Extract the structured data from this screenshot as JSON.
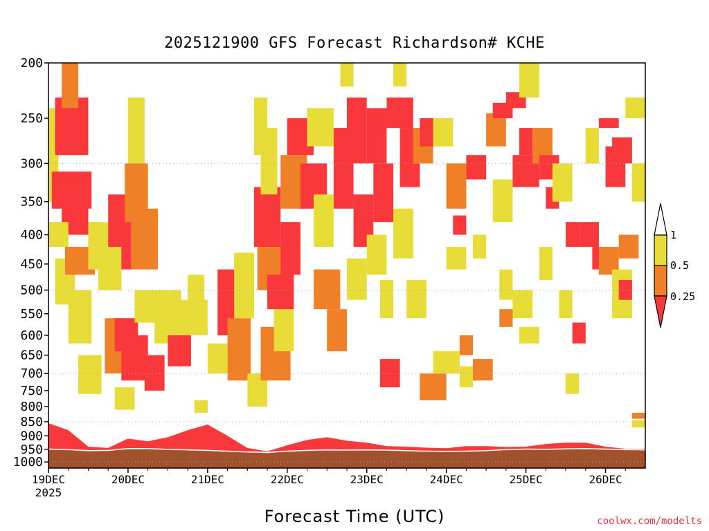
{
  "chart_data": {
    "type": "heatmap",
    "title": "2025121900 GFS Forecast Richardson# KCHE",
    "xlabel": "Forecast Time (UTC)",
    "credit": "coolwx.com/modelts",
    "x_ticks": [
      "19DEC",
      "20DEC",
      "21DEC",
      "22DEC",
      "23DEC",
      "24DEC",
      "25DEC",
      "26DEC"
    ],
    "x_start_label": "2025",
    "x_range_hours": [
      0,
      180
    ],
    "y_ticks": [
      200,
      250,
      300,
      350,
      400,
      450,
      500,
      550,
      600,
      650,
      700,
      750,
      800,
      850,
      900,
      950,
      1000
    ],
    "ylim": [
      1025,
      200
    ],
    "y_scale": "log-pressure",
    "gridlines": [
      300,
      500,
      700,
      850,
      1000
    ],
    "legend": {
      "position": "right",
      "levels": [
        "1",
        "0.5",
        "0.25"
      ],
      "colors": {
        "gt1": "#ffffff",
        "0.5-1": "#e8dc38",
        "0.25-0.5": "#f08028",
        "lt0.25": "#f8383a"
      }
    },
    "colors": {
      "ground": "#a0522d",
      "pbl": "#f8383a",
      "grid": "#aaaaaa"
    },
    "surface_pressure": [
      [
        0,
        952
      ],
      [
        6,
        954
      ],
      [
        12,
        958
      ],
      [
        18,
        957
      ],
      [
        24,
        950
      ],
      [
        30,
        950
      ],
      [
        36,
        953
      ],
      [
        42,
        955
      ],
      [
        48,
        957
      ],
      [
        54,
        960
      ],
      [
        60,
        963
      ],
      [
        66,
        965
      ],
      [
        72,
        960
      ],
      [
        78,
        957
      ],
      [
        84,
        955
      ],
      [
        90,
        956
      ],
      [
        96,
        955
      ],
      [
        102,
        956
      ],
      [
        108,
        958
      ],
      [
        114,
        960
      ],
      [
        120,
        961
      ],
      [
        126,
        960
      ],
      [
        132,
        958
      ],
      [
        138,
        954
      ],
      [
        144,
        952
      ],
      [
        150,
        953
      ],
      [
        156,
        951
      ],
      [
        162,
        950
      ],
      [
        168,
        952
      ],
      [
        174,
        954
      ],
      [
        180,
        955
      ]
    ],
    "pbl_top_pressure": [
      [
        0,
        855
      ],
      [
        6,
        880
      ],
      [
        12,
        940
      ],
      [
        18,
        945
      ],
      [
        24,
        910
      ],
      [
        30,
        920
      ],
      [
        36,
        905
      ],
      [
        42,
        880
      ],
      [
        48,
        860
      ],
      [
        54,
        900
      ],
      [
        60,
        945
      ],
      [
        66,
        958
      ],
      [
        72,
        935
      ],
      [
        78,
        915
      ],
      [
        84,
        905
      ],
      [
        90,
        918
      ],
      [
        96,
        925
      ],
      [
        102,
        938
      ],
      [
        108,
        940
      ],
      [
        114,
        944
      ],
      [
        120,
        946
      ],
      [
        126,
        938
      ],
      [
        132,
        938
      ],
      [
        138,
        941
      ],
      [
        144,
        940
      ],
      [
        150,
        930
      ],
      [
        156,
        925
      ],
      [
        162,
        925
      ],
      [
        168,
        940
      ],
      [
        174,
        948
      ],
      [
        180,
        948
      ]
    ],
    "patches": [
      {
        "h0": 0,
        "h1": 3,
        "p0": 350,
        "p1": 240,
        "ri": "yellow"
      },
      {
        "h0": 2,
        "h1": 12,
        "p0": 290,
        "p1": 230,
        "ri": "red"
      },
      {
        "h0": 4,
        "h1": 9,
        "p0": 240,
        "p1": 200,
        "ri": "orange"
      },
      {
        "h0": 1,
        "h1": 13,
        "p0": 360,
        "p1": 310,
        "ri": "red"
      },
      {
        "h0": 4,
        "h1": 12,
        "p0": 400,
        "p1": 350,
        "ri": "red"
      },
      {
        "h0": 0,
        "h1": 6,
        "p0": 420,
        "p1": 380,
        "ri": "yellow"
      },
      {
        "h0": 2,
        "h1": 8,
        "p0": 530,
        "p1": 440,
        "ri": "yellow"
      },
      {
        "h0": 5,
        "h1": 14,
        "p0": 470,
        "p1": 420,
        "ri": "orange"
      },
      {
        "h0": 6,
        "h1": 13,
        "p0": 620,
        "p1": 500,
        "ri": "yellow"
      },
      {
        "h0": 9,
        "h1": 16,
        "p0": 760,
        "p1": 650,
        "ri": "yellow"
      },
      {
        "h0": 12,
        "h1": 18,
        "p0": 460,
        "p1": 380,
        "ri": "yellow"
      },
      {
        "h0": 18,
        "h1": 25,
        "p0": 460,
        "p1": 340,
        "ri": "red"
      },
      {
        "h0": 15,
        "h1": 22,
        "p0": 500,
        "p1": 420,
        "ri": "yellow"
      },
      {
        "h0": 17,
        "h1": 23,
        "p0": 700,
        "p1": 560,
        "ri": "orange"
      },
      {
        "h0": 20,
        "h1": 27,
        "p0": 640,
        "p1": 560,
        "ri": "red"
      },
      {
        "h0": 22,
        "h1": 30,
        "p0": 720,
        "p1": 600,
        "ri": "red"
      },
      {
        "h0": 20,
        "h1": 26,
        "p0": 810,
        "p1": 740,
        "ri": "yellow"
      },
      {
        "h0": 24,
        "h1": 29,
        "p0": 300,
        "p1": 230,
        "ri": "yellow"
      },
      {
        "h0": 23,
        "h1": 30,
        "p0": 380,
        "p1": 300,
        "ri": "orange"
      },
      {
        "h0": 25,
        "h1": 33,
        "p0": 460,
        "p1": 360,
        "ri": "orange"
      },
      {
        "h0": 26,
        "h1": 33,
        "p0": 570,
        "p1": 500,
        "ri": "yellow"
      },
      {
        "h0": 29,
        "h1": 35,
        "p0": 750,
        "p1": 650,
        "ri": "red"
      },
      {
        "h0": 32,
        "h1": 40,
        "p0": 620,
        "p1": 500,
        "ri": "yellow"
      },
      {
        "h0": 36,
        "h1": 43,
        "p0": 680,
        "p1": 600,
        "ri": "red"
      },
      {
        "h0": 40,
        "h1": 48,
        "p0": 600,
        "p1": 520,
        "ri": "yellow"
      },
      {
        "h0": 42,
        "h1": 47,
        "p0": 530,
        "p1": 470,
        "ri": "yellow"
      },
      {
        "h0": 44,
        "h1": 48,
        "p0": 820,
        "p1": 780,
        "ri": "yellow"
      },
      {
        "h0": 51,
        "h1": 57,
        "p0": 600,
        "p1": 460,
        "ri": "red"
      },
      {
        "h0": 48,
        "h1": 54,
        "p0": 700,
        "p1": 620,
        "ri": "yellow"
      },
      {
        "h0": 54,
        "h1": 61,
        "p0": 720,
        "p1": 560,
        "ri": "orange"
      },
      {
        "h0": 56,
        "h1": 62,
        "p0": 560,
        "p1": 430,
        "ri": "yellow"
      },
      {
        "h0": 60,
        "h1": 66,
        "p0": 800,
        "p1": 700,
        "ri": "yellow"
      },
      {
        "h0": 62,
        "h1": 70,
        "p0": 420,
        "p1": 330,
        "ri": "red"
      },
      {
        "h0": 64,
        "h1": 69,
        "p0": 340,
        "p1": 260,
        "ri": "yellow"
      },
      {
        "h0": 62,
        "h1": 66,
        "p0": 290,
        "p1": 230,
        "ri": "yellow"
      },
      {
        "h0": 63,
        "h1": 72,
        "p0": 500,
        "p1": 420,
        "ri": "orange"
      },
      {
        "h0": 64,
        "h1": 73,
        "p0": 720,
        "p1": 580,
        "ri": "orange"
      },
      {
        "h0": 68,
        "h1": 74,
        "p0": 640,
        "p1": 540,
        "ri": "yellow"
      },
      {
        "h0": 70,
        "h1": 76,
        "p0": 470,
        "p1": 380,
        "ri": "red"
      },
      {
        "h0": 66,
        "h1": 74,
        "p0": 540,
        "p1": 470,
        "ri": "red"
      },
      {
        "h0": 70,
        "h1": 78,
        "p0": 360,
        "p1": 290,
        "ri": "orange"
      },
      {
        "h0": 72,
        "h1": 80,
        "p0": 290,
        "p1": 250,
        "ri": "red"
      },
      {
        "h0": 76,
        "h1": 84,
        "p0": 360,
        "p1": 300,
        "ri": "red"
      },
      {
        "h0": 78,
        "h1": 86,
        "p0": 280,
        "p1": 240,
        "ri": "yellow"
      },
      {
        "h0": 80,
        "h1": 86,
        "p0": 420,
        "p1": 340,
        "ri": "yellow"
      },
      {
        "h0": 80,
        "h1": 88,
        "p0": 540,
        "p1": 460,
        "ri": "orange"
      },
      {
        "h0": 84,
        "h1": 90,
        "p0": 640,
        "p1": 540,
        "ri": "orange"
      },
      {
        "h0": 86,
        "h1": 92,
        "p0": 360,
        "p1": 260,
        "ri": "red"
      },
      {
        "h0": 90,
        "h1": 96,
        "p0": 300,
        "p1": 230,
        "ri": "red"
      },
      {
        "h0": 88,
        "h1": 92,
        "p0": 220,
        "p1": 200,
        "ri": "yellow"
      },
      {
        "h0": 92,
        "h1": 98,
        "p0": 420,
        "p1": 340,
        "ri": "red"
      },
      {
        "h0": 90,
        "h1": 96,
        "p0": 520,
        "p1": 440,
        "ri": "yellow"
      },
      {
        "h0": 96,
        "h1": 102,
        "p0": 300,
        "p1": 240,
        "ri": "red"
      },
      {
        "h0": 98,
        "h1": 104,
        "p0": 380,
        "p1": 300,
        "ri": "red"
      },
      {
        "h0": 96,
        "h1": 102,
        "p0": 470,
        "p1": 400,
        "ri": "yellow"
      },
      {
        "h0": 100,
        "h1": 104,
        "p0": 560,
        "p1": 480,
        "ri": "yellow"
      },
      {
        "h0": 100,
        "h1": 106,
        "p0": 740,
        "p1": 660,
        "ri": "red"
      },
      {
        "h0": 102,
        "h1": 110,
        "p0": 260,
        "p1": 230,
        "ri": "red"
      },
      {
        "h0": 104,
        "h1": 108,
        "p0": 220,
        "p1": 200,
        "ri": "yellow"
      },
      {
        "h0": 104,
        "h1": 110,
        "p0": 440,
        "p1": 360,
        "ri": "yellow"
      },
      {
        "h0": 106,
        "h1": 112,
        "p0": 330,
        "p1": 260,
        "ri": "red"
      },
      {
        "h0": 108,
        "h1": 114,
        "p0": 560,
        "p1": 480,
        "ri": "yellow"
      },
      {
        "h0": 110,
        "h1": 116,
        "p0": 300,
        "p1": 260,
        "ri": "orange"
      },
      {
        "h0": 112,
        "h1": 118,
        "p0": 280,
        "p1": 250,
        "ri": "red"
      },
      {
        "h0": 112,
        "h1": 120,
        "p0": 780,
        "p1": 700,
        "ri": "orange"
      },
      {
        "h0": 116,
        "h1": 124,
        "p0": 700,
        "p1": 640,
        "ri": "yellow"
      },
      {
        "h0": 116,
        "h1": 122,
        "p0": 280,
        "p1": 250,
        "ri": "yellow"
      },
      {
        "h0": 120,
        "h1": 126,
        "p0": 360,
        "p1": 300,
        "ri": "orange"
      },
      {
        "h0": 122,
        "h1": 126,
        "p0": 400,
        "p1": 370,
        "ri": "red"
      },
      {
        "h0": 120,
        "h1": 126,
        "p0": 460,
        "p1": 420,
        "ri": "yellow"
      },
      {
        "h0": 124,
        "h1": 128,
        "p0": 650,
        "p1": 600,
        "ri": "orange"
      },
      {
        "h0": 124,
        "h1": 128,
        "p0": 740,
        "p1": 680,
        "ri": "yellow"
      },
      {
        "h0": 126,
        "h1": 132,
        "p0": 320,
        "p1": 290,
        "ri": "red"
      },
      {
        "h0": 128,
        "h1": 132,
        "p0": 440,
        "p1": 400,
        "ri": "yellow"
      },
      {
        "h0": 128,
        "h1": 134,
        "p0": 720,
        "p1": 660,
        "ri": "orange"
      },
      {
        "h0": 132,
        "h1": 138,
        "p0": 280,
        "p1": 245,
        "ri": "orange"
      },
      {
        "h0": 134,
        "h1": 140,
        "p0": 250,
        "p1": 235,
        "ri": "red"
      },
      {
        "h0": 134,
        "h1": 140,
        "p0": 380,
        "p1": 320,
        "ri": "yellow"
      },
      {
        "h0": 136,
        "h1": 140,
        "p0": 520,
        "p1": 460,
        "ri": "yellow"
      },
      {
        "h0": 138,
        "h1": 144,
        "p0": 240,
        "p1": 225,
        "ri": "red"
      },
      {
        "h0": 136,
        "h1": 140,
        "p0": 580,
        "p1": 540,
        "ri": "orange"
      },
      {
        "h0": 142,
        "h1": 146,
        "p0": 290,
        "p1": 260,
        "ri": "red"
      },
      {
        "h0": 140,
        "h1": 148,
        "p0": 330,
        "p1": 290,
        "ri": "red"
      },
      {
        "h0": 140,
        "h1": 146,
        "p0": 560,
        "p1": 500,
        "ri": "yellow"
      },
      {
        "h0": 142,
        "h1": 148,
        "p0": 620,
        "p1": 580,
        "ri": "yellow"
      },
      {
        "h0": 142,
        "h1": 148,
        "p0": 230,
        "p1": 200,
        "ri": "yellow"
      },
      {
        "h0": 146,
        "h1": 152,
        "p0": 300,
        "p1": 260,
        "ri": "orange"
      },
      {
        "h0": 148,
        "h1": 154,
        "p0": 320,
        "p1": 290,
        "ri": "red"
      },
      {
        "h0": 148,
        "h1": 152,
        "p0": 480,
        "p1": 420,
        "ri": "yellow"
      },
      {
        "h0": 150,
        "h1": 154,
        "p0": 360,
        "p1": 330,
        "ri": "red"
      },
      {
        "h0": 152,
        "h1": 158,
        "p0": 350,
        "p1": 300,
        "ri": "yellow"
      },
      {
        "h0": 154,
        "h1": 158,
        "p0": 560,
        "p1": 500,
        "ri": "yellow"
      },
      {
        "h0": 156,
        "h1": 160,
        "p0": 420,
        "p1": 380,
        "ri": "red"
      },
      {
        "h0": 156,
        "h1": 160,
        "p0": 760,
        "p1": 700,
        "ri": "yellow"
      },
      {
        "h0": 158,
        "h1": 162,
        "p0": 620,
        "p1": 570,
        "ri": "red"
      },
      {
        "h0": 160,
        "h1": 166,
        "p0": 420,
        "p1": 380,
        "ri": "red"
      },
      {
        "h0": 162,
        "h1": 166,
        "p0": 300,
        "p1": 260,
        "ri": "yellow"
      },
      {
        "h0": 164,
        "h1": 168,
        "p0": 460,
        "p1": 420,
        "ri": "red"
      },
      {
        "h0": 166,
        "h1": 172,
        "p0": 260,
        "p1": 250,
        "ri": "red"
      },
      {
        "h0": 168,
        "h1": 174,
        "p0": 330,
        "p1": 280,
        "ri": "red"
      },
      {
        "h0": 170,
        "h1": 176,
        "p0": 300,
        "p1": 270,
        "ri": "red"
      },
      {
        "h0": 166,
        "h1": 172,
        "p0": 470,
        "p1": 420,
        "ri": "orange"
      },
      {
        "h0": 170,
        "h1": 176,
        "p0": 560,
        "p1": 460,
        "ri": "yellow"
      },
      {
        "h0": 172,
        "h1": 176,
        "p0": 520,
        "p1": 480,
        "ri": "red"
      },
      {
        "h0": 176,
        "h1": 180,
        "p0": 350,
        "p1": 300,
        "ri": "yellow"
      },
      {
        "h0": 176,
        "h1": 180,
        "p0": 840,
        "p1": 820,
        "ri": "orange"
      },
      {
        "h0": 176,
        "h1": 180,
        "p0": 870,
        "p1": 845,
        "ri": "yellow"
      },
      {
        "h0": 172,
        "h1": 178,
        "p0": 440,
        "p1": 400,
        "ri": "orange"
      },
      {
        "h0": 174,
        "h1": 180,
        "p0": 250,
        "p1": 230,
        "ri": "yellow"
      }
    ]
  }
}
